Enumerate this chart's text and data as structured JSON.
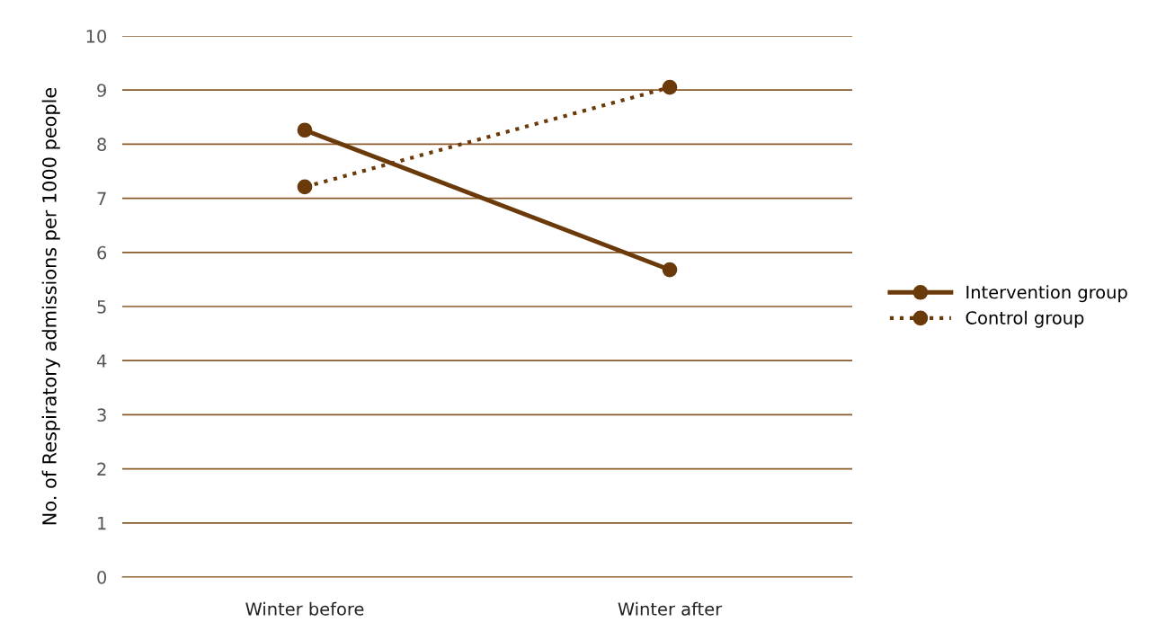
{
  "chart_data": {
    "type": "line",
    "ylabel": "No. of Respiratory admissions per 1000 people",
    "categories": [
      "Winter before",
      "Winter after"
    ],
    "series": [
      {
        "name": "Intervention group",
        "color": "#6b3a0b",
        "values": [
          8.26,
          5.68
        ],
        "line_style": "solid"
      },
      {
        "name": "Control group",
        "color": "#6b3a0b",
        "values": [
          7.21,
          9.05
        ],
        "line_style": "dotted"
      }
    ],
    "ylim": [
      0,
      10
    ],
    "yticks": [
      0,
      1,
      2,
      3,
      4,
      5,
      6,
      7,
      8,
      9,
      10
    ],
    "grid": "y",
    "legend": "right",
    "marker": "circle"
  }
}
